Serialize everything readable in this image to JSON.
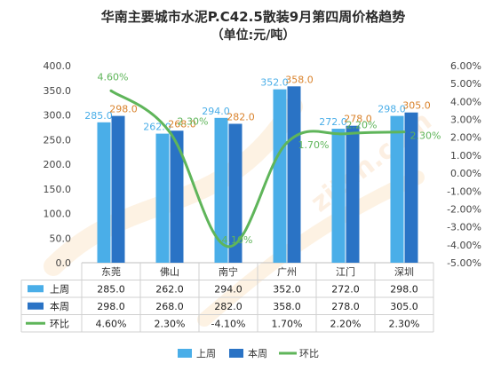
{
  "chart_data": {
    "type": "bar",
    "title": "华南主要城市水泥P.C42.5散装9月第四周价格趋势",
    "subtitle": "（单位:元/吨）",
    "categories": [
      "东莞",
      "佛山",
      "南宁",
      "广州",
      "江门",
      "深圳"
    ],
    "series": [
      {
        "name": "上周",
        "type": "bar",
        "axis": "left",
        "color": "#4aaee8",
        "label_color": "#4aaee8",
        "values": [
          285.0,
          262.0,
          294.0,
          352.0,
          272.0,
          298.0
        ],
        "labels": [
          "285.0",
          "262.0",
          "294.0",
          "352.0",
          "272.0",
          "298.0"
        ]
      },
      {
        "name": "本周",
        "type": "bar",
        "axis": "left",
        "color": "#2a73c5",
        "label_color": "#d9822b",
        "values": [
          298.0,
          268.0,
          282.0,
          358.0,
          278.0,
          305.0
        ],
        "labels": [
          "298.0",
          "268.0",
          "282.0",
          "358.0",
          "278.0",
          "305.0"
        ]
      },
      {
        "name": "环比",
        "type": "line",
        "axis": "right",
        "color": "#5fb55a",
        "label_color": "#5fb55a",
        "values": [
          4.6,
          2.3,
          -4.1,
          1.7,
          2.2,
          2.3
        ],
        "labels": [
          "4.60%",
          "2.30%",
          "-4.10%",
          "1.70%",
          "2.20%",
          "2.30%"
        ]
      }
    ],
    "left_axis": {
      "min": 0,
      "max": 400,
      "step": 50,
      "tick_labels": [
        "0.0",
        "50.0",
        "100.0",
        "150.0",
        "200.0",
        "250.0",
        "300.0",
        "350.0",
        "400.0"
      ]
    },
    "right_axis": {
      "min": -5,
      "max": 6,
      "step": 1,
      "tick_labels": [
        "-5.00%",
        "-4.00%",
        "-3.00%",
        "-2.00%",
        "-1.00%",
        "0.00%",
        "1.00%",
        "2.00%",
        "3.00%",
        "4.00%",
        "5.00%",
        "6.00%"
      ]
    },
    "grid": false,
    "legend_position": "bottom",
    "data_table": true,
    "watermark": "zjtcn.com"
  }
}
